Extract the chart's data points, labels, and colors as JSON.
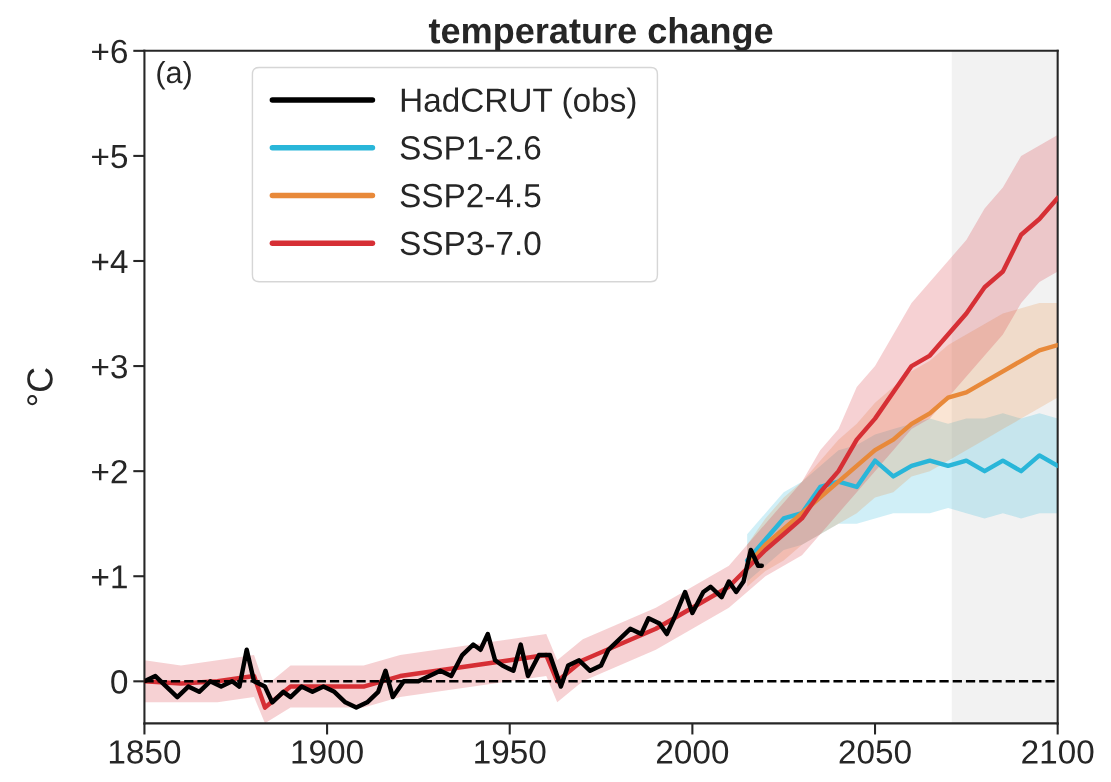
{
  "chart_data": {
    "type": "line",
    "title": "temperature change",
    "ylabel": "°C",
    "annotations": [
      "(a)"
    ],
    "xlim": [
      1850,
      2100
    ],
    "ylim": [
      -0.4,
      6
    ],
    "xticks": [
      1850,
      1900,
      1950,
      2000,
      2050,
      2100
    ],
    "yticks": [
      0,
      {
        "value": 1,
        "label": "+1"
      },
      {
        "value": 2,
        "label": "+2"
      },
      {
        "value": 3,
        "label": "+3"
      },
      {
        "value": 4,
        "label": "+4"
      },
      {
        "value": 5,
        "label": "+5"
      },
      {
        "value": 6,
        "label": "+6"
      }
    ],
    "grid": false,
    "legend": "top left",
    "line_style": "solid",
    "ref_lines": [
      {
        "axis": "y",
        "value": 0,
        "color": "#000000",
        "line_style": "dashed"
      }
    ],
    "bands": [
      {
        "axis": "x",
        "from": 2071,
        "to": 2100,
        "color": "#f2f2f2"
      }
    ],
    "series": [
      {
        "name": "HadCRUT (obs)",
        "color": "#000000",
        "x": [
          1850,
          1853,
          1856,
          1859,
          1862,
          1865,
          1868,
          1871,
          1874,
          1876,
          1878,
          1880,
          1883,
          1885,
          1888,
          1890,
          1893,
          1896,
          1899,
          1902,
          1905,
          1908,
          1911,
          1914,
          1916,
          1918,
          1921,
          1925,
          1928,
          1931,
          1934,
          1937,
          1940,
          1942,
          1944,
          1946,
          1948,
          1951,
          1953,
          1955,
          1958,
          1961,
          1964,
          1966,
          1969,
          1972,
          1975,
          1977,
          1980,
          1983,
          1986,
          1988,
          1991,
          1993,
          1995,
          1998,
          2000,
          2003,
          2005,
          2008,
          2010,
          2012,
          2014,
          2016,
          2018,
          2019
        ],
        "values": [
          0.0,
          0.05,
          -0.05,
          -0.15,
          -0.05,
          -0.1,
          0.0,
          -0.05,
          0.0,
          -0.05,
          0.3,
          0.0,
          -0.05,
          -0.2,
          -0.1,
          -0.15,
          -0.05,
          -0.1,
          -0.05,
          -0.1,
          -0.2,
          -0.25,
          -0.2,
          -0.1,
          0.1,
          -0.15,
          0.0,
          0.0,
          0.05,
          0.1,
          0.05,
          0.25,
          0.35,
          0.3,
          0.45,
          0.2,
          0.15,
          0.1,
          0.35,
          0.05,
          0.25,
          0.25,
          -0.05,
          0.15,
          0.2,
          0.1,
          0.15,
          0.3,
          0.4,
          0.5,
          0.45,
          0.6,
          0.55,
          0.45,
          0.6,
          0.85,
          0.65,
          0.85,
          0.9,
          0.8,
          0.95,
          0.85,
          0.95,
          1.25,
          1.1,
          1.1
        ]
      },
      {
        "name": "SSP1-2.6",
        "color": "#29b6d9",
        "x": [
          2015,
          2020,
          2025,
          2030,
          2035,
          2040,
          2045,
          2050,
          2055,
          2060,
          2065,
          2070,
          2075,
          2080,
          2085,
          2090,
          2095,
          2100
        ],
        "values": [
          1.15,
          1.35,
          1.55,
          1.6,
          1.85,
          1.9,
          1.85,
          2.1,
          1.95,
          2.05,
          2.1,
          2.05,
          2.1,
          2.0,
          2.1,
          2.0,
          2.15,
          2.05
        ],
        "lower": [
          0.95,
          1.1,
          1.25,
          1.3,
          1.4,
          1.5,
          1.5,
          1.55,
          1.6,
          1.6,
          1.6,
          1.65,
          1.6,
          1.55,
          1.6,
          1.55,
          1.6,
          1.6
        ],
        "upper": [
          1.4,
          1.6,
          1.8,
          1.9,
          2.05,
          2.2,
          2.25,
          2.35,
          2.4,
          2.45,
          2.5,
          2.45,
          2.5,
          2.5,
          2.55,
          2.5,
          2.55,
          2.5
        ]
      },
      {
        "name": "SSP2-4.5",
        "color": "#e8893a",
        "x": [
          2015,
          2020,
          2025,
          2030,
          2035,
          2040,
          2045,
          2050,
          2055,
          2060,
          2065,
          2070,
          2075,
          2080,
          2085,
          2090,
          2095,
          2100
        ],
        "values": [
          1.1,
          1.3,
          1.45,
          1.6,
          1.75,
          1.9,
          2.05,
          2.2,
          2.3,
          2.45,
          2.55,
          2.7,
          2.75,
          2.85,
          2.95,
          3.05,
          3.15,
          3.2
        ],
        "lower": [
          0.9,
          1.05,
          1.15,
          1.3,
          1.4,
          1.5,
          1.6,
          1.75,
          1.8,
          1.95,
          2.0,
          2.1,
          2.2,
          2.3,
          2.4,
          2.5,
          2.6,
          2.7
        ],
        "upper": [
          1.3,
          1.55,
          1.75,
          1.9,
          2.1,
          2.3,
          2.45,
          2.65,
          2.8,
          2.95,
          3.05,
          3.2,
          3.3,
          3.4,
          3.5,
          3.55,
          3.6,
          3.6
        ]
      },
      {
        "name": "SSP3-7.0",
        "color": "#d62f35",
        "x": [
          1850,
          1860,
          1870,
          1880,
          1883,
          1890,
          1900,
          1910,
          1920,
          1930,
          1940,
          1950,
          1960,
          1963,
          1970,
          1980,
          1990,
          2000,
          2010,
          2020,
          2025,
          2030,
          2035,
          2040,
          2045,
          2050,
          2055,
          2060,
          2065,
          2070,
          2075,
          2080,
          2085,
          2090,
          2095,
          2100
        ],
        "values": [
          0,
          -0.02,
          0,
          0.05,
          -0.25,
          -0.05,
          -0.05,
          -0.05,
          0.05,
          0.1,
          0.15,
          0.2,
          0.25,
          0.0,
          0.2,
          0.35,
          0.5,
          0.7,
          0.9,
          1.25,
          1.4,
          1.55,
          1.8,
          2.0,
          2.3,
          2.5,
          2.75,
          3.0,
          3.1,
          3.3,
          3.5,
          3.75,
          3.9,
          4.25,
          4.4,
          4.6
        ],
        "lower": [
          -0.2,
          -0.2,
          -0.2,
          -0.15,
          -0.4,
          -0.25,
          -0.25,
          -0.25,
          -0.15,
          -0.1,
          -0.05,
          0.0,
          0.05,
          -0.2,
          0.0,
          0.15,
          0.3,
          0.5,
          0.7,
          1.0,
          1.1,
          1.2,
          1.4,
          1.6,
          1.8,
          2.0,
          2.2,
          2.4,
          2.5,
          2.7,
          2.9,
          3.1,
          3.3,
          3.6,
          3.8,
          3.9
        ],
        "upper": [
          0.2,
          0.15,
          0.2,
          0.25,
          -0.05,
          0.15,
          0.15,
          0.15,
          0.25,
          0.3,
          0.35,
          0.4,
          0.45,
          0.2,
          0.4,
          0.55,
          0.7,
          0.9,
          1.1,
          1.5,
          1.7,
          1.9,
          2.2,
          2.4,
          2.8,
          3.0,
          3.3,
          3.6,
          3.8,
          4.0,
          4.2,
          4.5,
          4.7,
          5.0,
          5.1,
          5.2
        ]
      }
    ]
  }
}
